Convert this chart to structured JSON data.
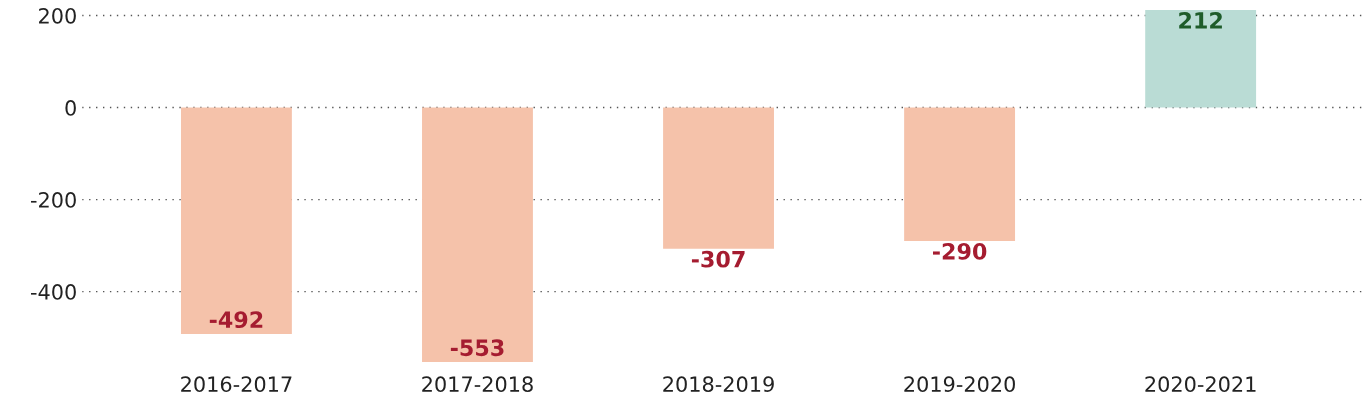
{
  "chart_data": {
    "type": "bar",
    "categories": [
      "2016-2017",
      "2017-2018",
      "2018-2019",
      "2019-2020",
      "2020-2021"
    ],
    "values": [
      -492,
      -553,
      -307,
      -290,
      212
    ],
    "colors": [
      "#f5c2aa",
      "#f5c2aa",
      "#f5c2aa",
      "#f5c2aa",
      "#badcd5"
    ],
    "ylim": [
      -553,
      212
    ],
    "yticks": [
      -400,
      -200,
      0,
      200
    ],
    "grid": "y",
    "data_labels": true
  }
}
